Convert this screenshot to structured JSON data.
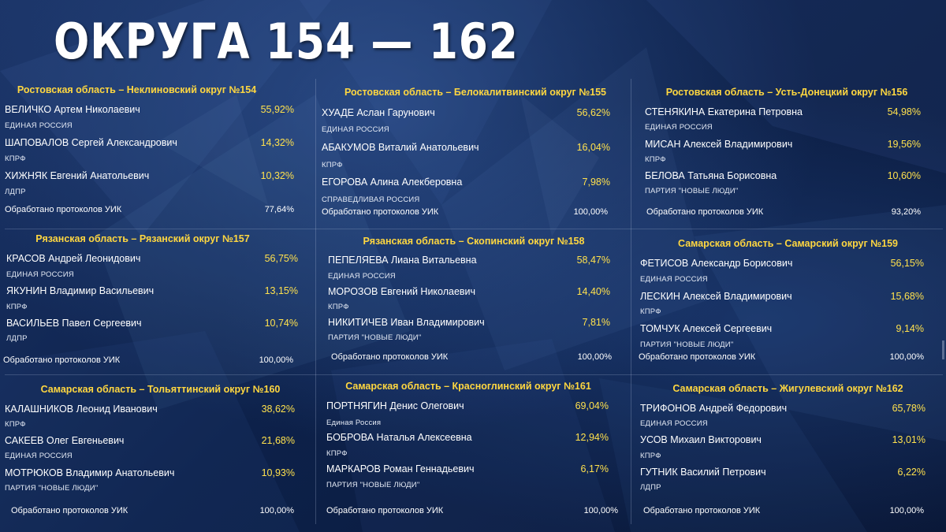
{
  "title": "ОКРУГА 154 — 162",
  "protocols_label": "Обработано протоколов УИК",
  "districts": [
    {
      "title": "Ростовская область – Неклиновский округ №154",
      "candidates": [
        {
          "name": "ВЕЛИЧКО Артем Николаевич",
          "pct": "55,92%",
          "party": "ЕДИНАЯ РОССИЯ"
        },
        {
          "name": "ШАПОВАЛОВ Сергей Александрович",
          "pct": "14,32%",
          "party": "КПРФ"
        },
        {
          "name": "ХИЖНЯК Евгений Анатольевич",
          "pct": "10,32%",
          "party": "ЛДПР"
        }
      ],
      "processed": "77,64%"
    },
    {
      "title": "Ростовская область – Белокалитвинский округ №155",
      "candidates": [
        {
          "name": "ХУАДЕ Аслан Гарунович",
          "pct": "56,62%",
          "party": "ЕДИНАЯ РОССИЯ"
        },
        {
          "name": "АБАКУМОВ Виталий Анатольевич",
          "pct": "16,04%",
          "party": "КПРФ"
        },
        {
          "name": "ЕГОРОВА Алина Алекберовна",
          "pct": "7,98%",
          "party": "СПРАВЕДЛИВАЯ РОССИЯ"
        }
      ],
      "processed": "100,00%"
    },
    {
      "title": "Ростовская область – Усть-Донецкий округ №156",
      "candidates": [
        {
          "name": "СТЕНЯКИНА Екатерина Петровна",
          "pct": "54,98%",
          "party": "ЕДИНАЯ РОССИЯ"
        },
        {
          "name": "МИСАН Алексей Владимирович",
          "pct": "19,56%",
          "party": "КПРФ"
        },
        {
          "name": "БЕЛОВА Татьяна Борисовна",
          "pct": "10,60%",
          "party": "ПАРТИЯ \"НОВЫЕ ЛЮДИ\""
        }
      ],
      "processed": "93,20%"
    },
    {
      "title": "Рязанская область – Рязанский округ №157",
      "candidates": [
        {
          "name": "КРАСОВ Андрей Леонидович",
          "pct": "56,75%",
          "party": "ЕДИНАЯ РОССИЯ"
        },
        {
          "name": "ЯКУНИН Владимир Васильевич",
          "pct": "13,15%",
          "party": "КПРФ"
        },
        {
          "name": "ВАСИЛЬЕВ Павел Сергеевич",
          "pct": "10,74%",
          "party": "ЛДПР"
        }
      ],
      "processed": "100,00%"
    },
    {
      "title": "Рязанская область – Скопинский округ №158",
      "candidates": [
        {
          "name": "ПЕПЕЛЯЕВА Лиана Витальевна",
          "pct": "58,47%",
          "party": "ЕДИНАЯ РОССИЯ"
        },
        {
          "name": "МОРОЗОВ Евгений Николаевич",
          "pct": "14,40%",
          "party": "КПРФ"
        },
        {
          "name": "НИКИТИЧЕВ Иван Владимирович",
          "pct": "7,81%",
          "party": "ПАРТИЯ \"НОВЫЕ ЛЮДИ\""
        }
      ],
      "processed": "100,00%"
    },
    {
      "title": "Самарская область – Самарский округ №159",
      "candidates": [
        {
          "name": "ФЕТИСОВ Александр Борисович",
          "pct": "56,15%",
          "party": "ЕДИНАЯ РОССИЯ"
        },
        {
          "name": "ЛЕСКИН Алексей Владимирович",
          "pct": "15,68%",
          "party": "КПРФ"
        },
        {
          "name": "ТОМЧУК Алексей Сергеевич",
          "pct": "9,14%",
          "party": "ПАРТИЯ \"НОВЫЕ ЛЮДИ\""
        }
      ],
      "processed": "100,00%"
    },
    {
      "title": "Самарская область – Тольяттинский округ №160",
      "candidates": [
        {
          "name": "КАЛАШНИКОВ Леонид Иванович",
          "pct": "38,62%",
          "party": "КПРФ"
        },
        {
          "name": "САКЕЕВ Олег Евгеньевич",
          "pct": "21,68%",
          "party": "ЕДИНАЯ РОССИЯ"
        },
        {
          "name": "МОТРЮКОВ Владимир Анатольевич",
          "pct": "10,93%",
          "party": "ПАРТИЯ \"НОВЫЕ ЛЮДИ\""
        }
      ],
      "processed": "100,00%"
    },
    {
      "title": "Самарская область – Красноглинский округ №161",
      "candidates": [
        {
          "name": "ПОРТНЯГИН Денис Олегович",
          "pct": "69,04%",
          "party": "Единая Россия"
        },
        {
          "name": "БОБРОВА Наталья Алексеевна",
          "pct": "12,94%",
          "party": "КПРФ"
        },
        {
          "name": "МАРКАРОВ Роман Геннадьевич",
          "pct": "6,17%",
          "party": "ПАРТИЯ \"НОВЫЕ ЛЮДИ\""
        }
      ],
      "processed": "100,00%"
    },
    {
      "title": "Самарская область – Жигулевский округ №162",
      "candidates": [
        {
          "name": "ТРИФОНОВ Андрей Федорович",
          "pct": "65,78%",
          "party": "ЕДИНАЯ РОССИЯ"
        },
        {
          "name": "УСОВ Михаил Викторович",
          "pct": "13,01%",
          "party": "КПРФ"
        },
        {
          "name": "ГУТНИК Василий Петрович",
          "pct": "6,22%",
          "party": "ЛДПР"
        }
      ],
      "processed": "100,00%"
    }
  ]
}
